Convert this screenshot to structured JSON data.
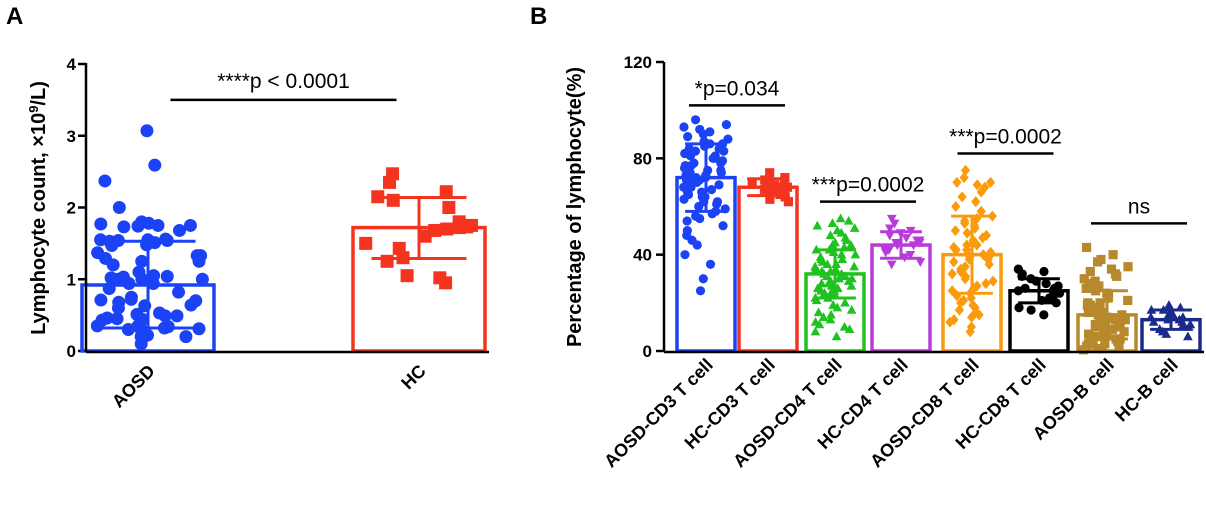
{
  "chart_data": [
    {
      "panel": "A",
      "type": "bar",
      "ylabel_prefix": "Lymphocyte count, ×10",
      "ylabel_sup": "9",
      "ylabel_suffix": "/L)",
      "ylim": [
        0,
        4
      ],
      "yticks": [
        "0",
        "1",
        "2",
        "3",
        "4"
      ],
      "categories": [
        "AOSD",
        "HC"
      ],
      "series": [
        {
          "name": "AOSD",
          "color": "#1b43f5",
          "marker": "circle",
          "mean": 0.92,
          "sd_low": 0.32,
          "sd_high": 1.53,
          "points": [
            3.07,
            2.59,
            2.37,
            2.0,
            1.8,
            1.78,
            1.77,
            1.75,
            1.75,
            1.74,
            1.73,
            1.68,
            1.56,
            1.55,
            1.55,
            1.54,
            1.54,
            1.53,
            1.51,
            1.48,
            1.47,
            1.37,
            1.33,
            1.33,
            1.29,
            1.25,
            1.25,
            1.2,
            1.1,
            1.05,
            1.04,
            1.03,
            1.02,
            1.0,
            1.0,
            1.0,
            0.94,
            0.94,
            0.87,
            0.82,
            0.75,
            0.72,
            0.71,
            0.7,
            0.68,
            0.64,
            0.63,
            0.6,
            0.53,
            0.51,
            0.49,
            0.49,
            0.46,
            0.45,
            0.44,
            0.43,
            0.35,
            0.35,
            0.34,
            0.32,
            0.31,
            0.3,
            0.3,
            0.22,
            0.2,
            0.2,
            0.18,
            0.1
          ]
        },
        {
          "name": "HC",
          "color": "#f5341f",
          "marker": "square",
          "mean": 1.72,
          "sd_low": 1.29,
          "sd_high": 2.14,
          "points": [
            2.47,
            2.35,
            2.22,
            2.15,
            2.1,
            2.0,
            1.8,
            1.75,
            1.73,
            1.72,
            1.7,
            1.68,
            1.6,
            1.5,
            1.43,
            1.3,
            1.25,
            1.05,
            1.02,
            0.95
          ]
        }
      ],
      "comparisons": [
        {
          "from": 0,
          "to": 1,
          "label": "****p < 0.0001",
          "y": 3.5
        }
      ]
    },
    {
      "panel": "B",
      "type": "bar",
      "ylabel": "Percentage of lymphocyte(%)",
      "ylim": [
        0,
        120
      ],
      "yticks": [
        "0",
        "40",
        "80",
        "120"
      ],
      "categories": [
        "AOSD-CD3 T cell",
        "HC-CD3 T cell",
        "AOSD-CD4 T cell",
        "HC-CD4 T cell",
        "AOSD-CD8 T cell",
        "HC-CD8 T cell",
        "AOSD-B cell",
        "HC-B cell"
      ],
      "series": [
        {
          "name": "AOSD-CD3 T cell",
          "color": "#1b43f5",
          "marker": "circle",
          "mean": 72,
          "sd_low": 58,
          "sd_high": 86,
          "spread": 0.86,
          "points": [
            96,
            94,
            93,
            92,
            91,
            90,
            89,
            88,
            87,
            86,
            86,
            85,
            84,
            84,
            83,
            83,
            82,
            81,
            81,
            80,
            80,
            79,
            78,
            78,
            77,
            77,
            76,
            76,
            75,
            75,
            74,
            74,
            73,
            73,
            72,
            72,
            71,
            71,
            70,
            70,
            69,
            69,
            68,
            68,
            67,
            66,
            66,
            65,
            64,
            64,
            63,
            62,
            62,
            61,
            60,
            59,
            58,
            57,
            56,
            55,
            54,
            52,
            50,
            48,
            46,
            44,
            40,
            36,
            30,
            25
          ]
        },
        {
          "name": "HC-CD3 T cell",
          "color": "#f5341f",
          "marker": "square",
          "mean": 68,
          "sd_low": 64.5,
          "sd_high": 71.5,
          "spread": 0.8,
          "points": [
            74,
            72,
            71,
            71,
            70,
            70,
            69,
            69,
            69,
            68,
            68,
            68,
            67,
            67,
            66,
            66,
            65,
            64,
            63,
            62
          ]
        },
        {
          "name": "AOSD-CD4 T cell",
          "color": "#1fc21f",
          "marker": "triangle-up",
          "mean": 32,
          "sd_low": 22,
          "sd_high": 42,
          "spread": 0.8,
          "points": [
            55,
            54,
            53,
            52,
            51,
            50,
            49,
            48,
            47,
            46,
            45,
            44,
            44,
            43,
            42,
            42,
            41,
            40,
            40,
            39,
            38,
            38,
            37,
            36,
            36,
            35,
            35,
            34,
            34,
            33,
            33,
            32,
            32,
            31,
            31,
            30,
            30,
            29,
            29,
            28,
            28,
            27,
            27,
            26,
            26,
            25,
            25,
            24,
            24,
            23,
            22,
            22,
            21,
            20,
            19,
            18,
            17,
            16,
            15,
            14,
            13,
            12,
            11,
            10,
            9,
            8,
            6
          ]
        },
        {
          "name": "HC-CD4 T cell",
          "color": "#b83ad8",
          "marker": "triangle-down",
          "mean": 44,
          "sd_low": 38.5,
          "sd_high": 49.5,
          "spread": 0.8,
          "points": [
            55,
            53,
            51,
            50,
            49,
            48,
            47,
            46,
            46,
            45,
            45,
            44,
            44,
            43,
            42,
            41,
            40,
            39,
            37,
            36
          ]
        },
        {
          "name": "AOSD-CD8 T cell",
          "color": "#f99b0a",
          "marker": "diamond",
          "mean": 40,
          "sd_low": 24,
          "sd_high": 56,
          "spread": 0.85,
          "points": [
            75,
            72,
            70,
            70,
            69,
            68,
            66,
            64,
            62,
            60,
            58,
            56,
            55,
            54,
            53,
            52,
            51,
            50,
            49,
            48,
            47,
            46,
            45,
            44,
            44,
            43,
            42,
            42,
            41,
            40,
            40,
            39,
            38,
            38,
            37,
            36,
            35,
            34,
            33,
            32,
            31,
            30,
            29,
            28,
            27,
            26,
            25,
            24,
            23,
            22,
            21,
            20,
            19,
            18,
            17,
            16,
            15,
            14,
            13,
            12,
            10,
            8
          ]
        },
        {
          "name": "HC-CD8 T cell",
          "color": "#000000",
          "marker": "circle",
          "mean": 25,
          "sd_low": 20,
          "sd_high": 30,
          "spread": 0.8,
          "points": [
            34,
            33,
            32,
            31,
            30,
            29,
            28,
            27,
            26,
            26,
            25,
            25,
            24,
            23,
            22,
            21,
            20,
            18,
            17,
            15
          ]
        },
        {
          "name": "AOSD-B cell",
          "color": "#b8892c",
          "marker": "square",
          "mean": 15,
          "sd_low": 5,
          "sd_high": 25,
          "spread": 0.9,
          "points": [
            43,
            40,
            38,
            37,
            35,
            34,
            33,
            32,
            31,
            30,
            29,
            28,
            27,
            26,
            25,
            24,
            23,
            22,
            21,
            20,
            20,
            19,
            19,
            18,
            18,
            17,
            17,
            16,
            16,
            15,
            15,
            14,
            14,
            13,
            13,
            12,
            12,
            11,
            11,
            10,
            10,
            9,
            9,
            8,
            8,
            7,
            7,
            6,
            6,
            5,
            5,
            4,
            4,
            3,
            3,
            2,
            2,
            1,
            1,
            0.5
          ]
        },
        {
          "name": "HC-B cell",
          "color": "#1a2b8c",
          "marker": "triangle-up",
          "mean": 13,
          "sd_low": 9,
          "sd_high": 17,
          "spread": 0.8,
          "points": [
            19,
            18,
            17,
            17,
            16,
            15,
            15,
            14,
            14,
            13,
            13,
            12,
            12,
            11,
            11,
            10,
            9,
            8,
            7,
            6
          ]
        }
      ],
      "comparisons": [
        {
          "from": 0,
          "to": 1,
          "label": "*p=0.034",
          "y": 102
        },
        {
          "from": 2,
          "to": 3,
          "label": "***p=0.0002",
          "y": 62
        },
        {
          "from": 4,
          "to": 5,
          "label": "***p=0.0002",
          "y": 82
        },
        {
          "from": 6,
          "to": 7,
          "label": "ns",
          "y": 53
        }
      ]
    }
  ]
}
